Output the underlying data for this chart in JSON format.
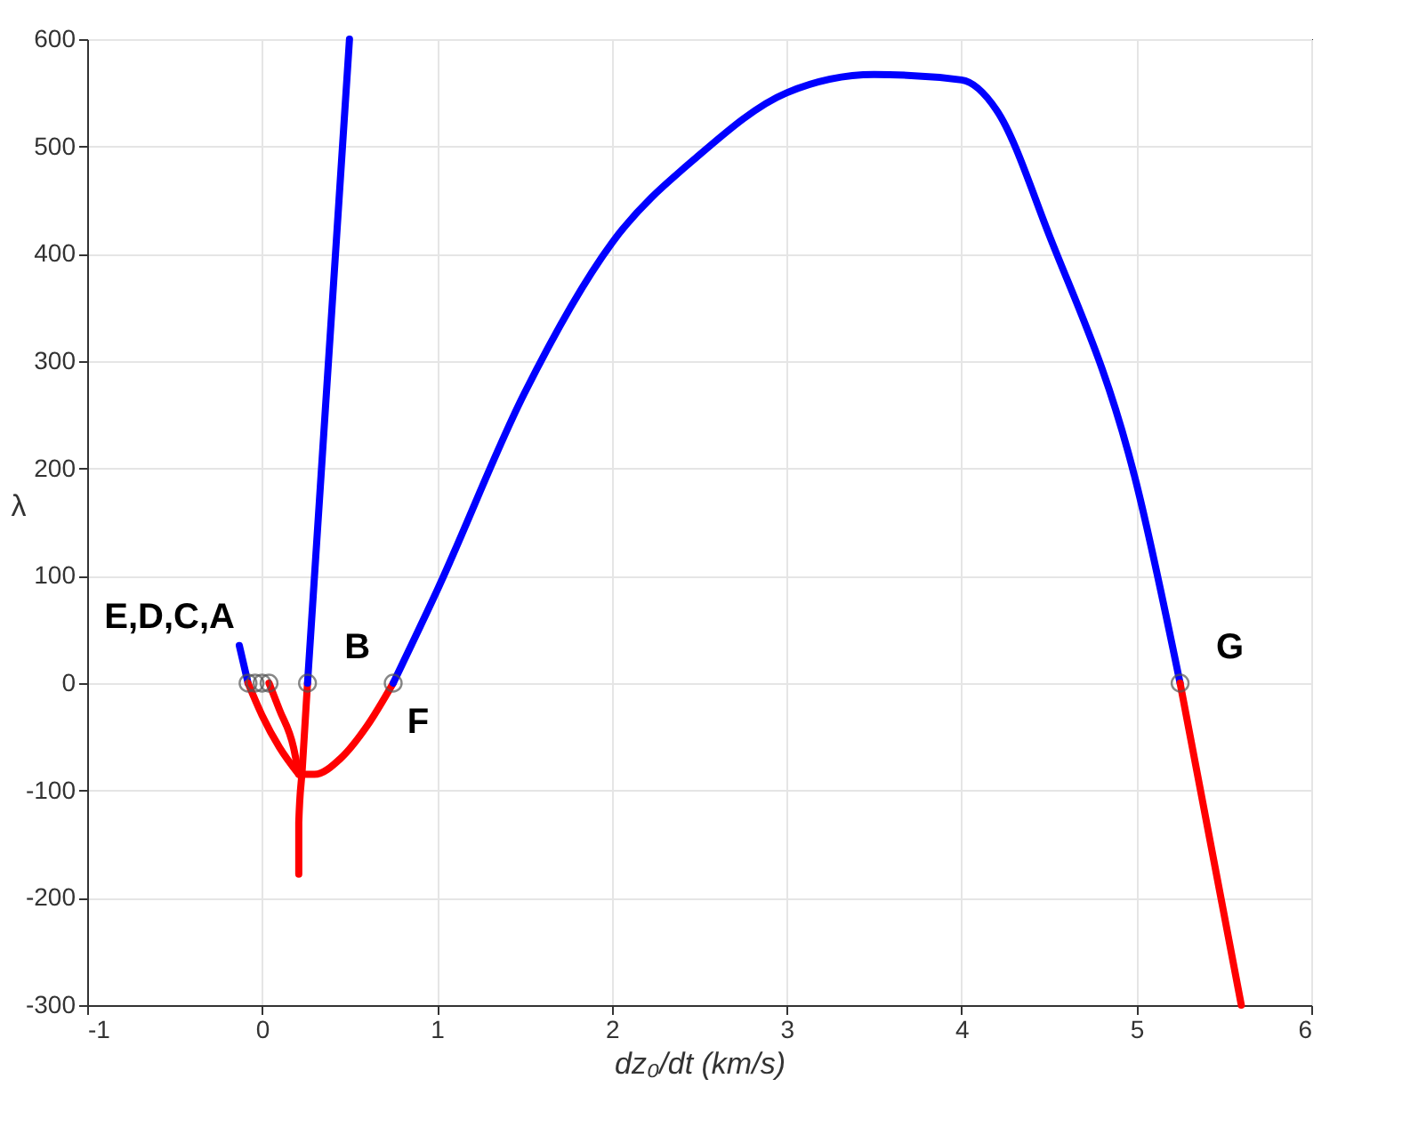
{
  "chart_data": {
    "type": "line",
    "xlabel": "dz₀/dt (km/s)",
    "ylabel": "λ",
    "xlim": [
      -1,
      6
    ],
    "xticks": [
      -1,
      0,
      1,
      2,
      3,
      4,
      5,
      6
    ],
    "ylim": [
      -300,
      600
    ],
    "yticks": [
      -300,
      -200,
      -100,
      0,
      100,
      200,
      300,
      400,
      500,
      600
    ],
    "grid": true,
    "line_style": "solid",
    "series": [
      {
        "color": "#0000ff",
        "x": [
          -0.13,
          -0.08
        ],
        "values": [
          35,
          0
        ]
      },
      {
        "color": "#ff0000",
        "x": [
          -0.08,
          0.0,
          0.1,
          0.21
        ],
        "values": [
          0,
          -30,
          -60,
          -85
        ]
      },
      {
        "color": "#ff0000",
        "x": [
          0.04,
          0.1,
          0.18,
          0.21
        ],
        "values": [
          0,
          -25,
          -60,
          -85
        ]
      },
      {
        "color": "#ff0000",
        "x": [
          0.26,
          0.23,
          0.21,
          0.21
        ],
        "values": [
          0,
          -80,
          -130,
          -178
        ]
      },
      {
        "color": "#ff0000",
        "x": [
          0.75,
          0.6,
          0.45,
          0.3,
          0.24
        ],
        "values": [
          0,
          -40,
          -70,
          -85,
          -85
        ]
      },
      {
        "color": "#0000ff",
        "x": [
          0.26,
          0.5
        ],
        "values": [
          0,
          600
        ]
      },
      {
        "color": "#0000ff",
        "x": [
          0.75,
          1.0,
          1.5,
          2.0,
          2.5,
          3.0,
          3.5,
          4.0,
          4.2,
          4.5,
          5.0,
          5.25
        ],
        "values": [
          0,
          86,
          270,
          410,
          492,
          550,
          567,
          562,
          534,
          418,
          186,
          0
        ]
      },
      {
        "color": "#ff0000",
        "x": [
          5.25,
          5.6
        ],
        "values": [
          0,
          -300
        ]
      },
      {
        "type": "scatter",
        "marker": "circle",
        "color": "#555555",
        "x": [
          -0.08,
          -0.04,
          0.0,
          0.04,
          0.26,
          0.75,
          5.25
        ],
        "values": [
          0,
          0,
          0,
          0,
          0,
          0,
          0
        ]
      }
    ],
    "annotations": [
      {
        "text": "E,D,C,A",
        "x": -0.02,
        "y": 0
      },
      {
        "text": "B",
        "x": 0.26,
        "y": 0
      },
      {
        "text": "F",
        "x": 0.75,
        "y": 0
      },
      {
        "text": "G",
        "x": 5.25,
        "y": 0
      }
    ]
  }
}
